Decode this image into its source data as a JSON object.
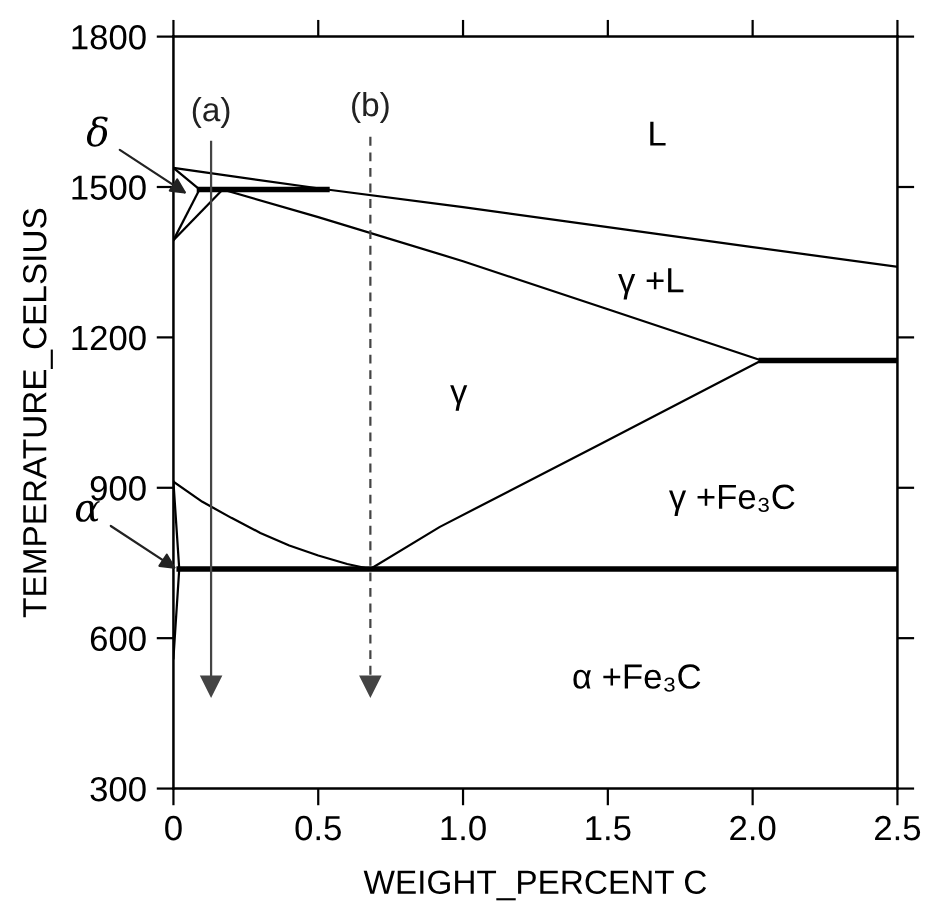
{
  "chart_data": {
    "type": "line",
    "xlabel": "WEIGHT_PERCENT C",
    "ylabel": "TEMPERATURE_CELSIUS",
    "xlim": [
      0,
      2.5
    ],
    "xticks": [
      0,
      0.5,
      {
        "value": 1,
        "label": "1.0"
      },
      1.5,
      {
        "value": 2,
        "label": "2.0"
      },
      2.5
    ],
    "ylim": [
      300,
      1800
    ],
    "yticks": [
      300,
      600,
      900,
      1200,
      1500,
      1800
    ],
    "grid": false,
    "legend": false,
    "series": [
      {
        "color": "#000000",
        "x": [
          0,
          0.53,
          1.0,
          1.5,
          2.0,
          2.5
        ],
        "values": [
          1538,
          1495,
          1460,
          1420,
          1380,
          1341
        ]
      },
      {
        "color": "#000000",
        "x": [
          0,
          0.09
        ],
        "values": [
          1538,
          1495
        ]
      },
      {
        "color": "#000000",
        "x": [
          0,
          0.09
        ],
        "values": [
          1394,
          1495
        ]
      },
      {
        "color": "#000000",
        "x": [
          0,
          0.17
        ],
        "values": [
          1394,
          1495
        ]
      },
      {
        "color": "#000000",
        "x": [
          0.09,
          0.53
        ],
        "values": [
          1495,
          1495
        ]
      },
      {
        "color": "#000000",
        "x": [
          0.17,
          0.5,
          1.0,
          1.5,
          2.03
        ],
        "values": [
          1495,
          1440,
          1352,
          1256,
          1154
        ]
      },
      {
        "color": "#000000",
        "x": [
          2.03,
          2.5
        ],
        "values": [
          1154,
          1154
        ]
      },
      {
        "color": "#000000",
        "x": [
          0.68,
          0.92,
          1.47,
          2.03
        ],
        "values": [
          738,
          822,
          986,
          1154
        ]
      },
      {
        "color": "#000000",
        "x": [
          0,
          0.1,
          0.2,
          0.3,
          0.4,
          0.5,
          0.6,
          0.68
        ],
        "values": [
          912,
          872,
          840,
          810,
          785,
          765,
          748,
          738
        ]
      },
      {
        "color": "#000000",
        "x": [
          0,
          0.02,
          0
        ],
        "values": [
          912,
          738,
          560
        ]
      },
      {
        "color": "#000000",
        "x": [
          0.02,
          2.5
        ],
        "values": [
          738,
          738
        ]
      },
      {
        "name": "(a)",
        "color": "#444444",
        "x": [
          0.13,
          0.13
        ],
        "values": [
          1590,
          505
        ],
        "line_style": "solid",
        "marker": "triangle"
      },
      {
        "name": "(b)",
        "color": "#444444",
        "x": [
          0.68,
          0.68
        ],
        "values": [
          1600,
          505
        ],
        "line_style": "dashed",
        "marker": "triangle"
      }
    ],
    "annotations": [
      "δ",
      {
        "text": "α",
        "x": 0.01,
        "y": 738
      },
      "L",
      "γ +L",
      "γ",
      "γ +Fe₃C",
      "α +Fe₃C"
    ]
  }
}
